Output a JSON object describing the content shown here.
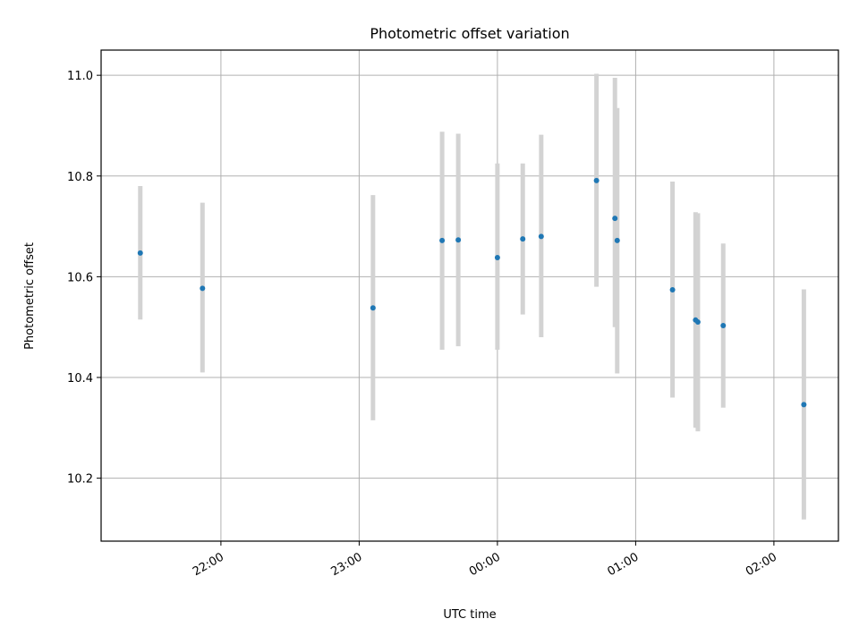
{
  "chart_data": {
    "type": "scatter",
    "title": "Photometric offset variation",
    "xlabel": "UTC time",
    "ylabel": "Photometric offset",
    "x_axis": {
      "type": "time",
      "range": [
        "21:08",
        "02:28"
      ],
      "ticks": [
        "22:00",
        "23:00",
        "00:00",
        "01:00",
        "02:00"
      ]
    },
    "y_axis": {
      "range": [
        10.075,
        11.05
      ],
      "ticks": [
        "10.2",
        "10.4",
        "10.6",
        "10.8",
        "11.0"
      ]
    },
    "grid": true,
    "marker_color": "#1f77b4",
    "errorbar_color": "#d3d3d3",
    "points": [
      {
        "x": "21:25",
        "y": 10.647,
        "low": 10.515,
        "high": 10.78
      },
      {
        "x": "21:52",
        "y": 10.577,
        "low": 10.41,
        "high": 10.747
      },
      {
        "x": "23:06",
        "y": 10.538,
        "low": 10.315,
        "high": 10.762
      },
      {
        "x": "23:36",
        "y": 10.672,
        "low": 10.455,
        "high": 10.888
      },
      {
        "x": "23:43",
        "y": 10.673,
        "low": 10.462,
        "high": 10.884
      },
      {
        "x": "00:00",
        "y": 10.638,
        "low": 10.455,
        "high": 10.825
      },
      {
        "x": "00:11",
        "y": 10.675,
        "low": 10.525,
        "high": 10.825
      },
      {
        "x": "00:19",
        "y": 10.68,
        "low": 10.48,
        "high": 10.882
      },
      {
        "x": "00:43",
        "y": 10.791,
        "low": 10.58,
        "high": 11.003
      },
      {
        "x": "00:51",
        "y": 10.716,
        "low": 10.5,
        "high": 10.995
      },
      {
        "x": "00:52",
        "y": 10.672,
        "low": 10.408,
        "high": 10.935
      },
      {
        "x": "01:16",
        "y": 10.574,
        "low": 10.36,
        "high": 10.789
      },
      {
        "x": "01:26",
        "y": 10.514,
        "low": 10.3,
        "high": 10.728
      },
      {
        "x": "01:27",
        "y": 10.51,
        "low": 10.293,
        "high": 10.726
      },
      {
        "x": "01:38",
        "y": 10.503,
        "low": 10.34,
        "high": 10.666
      },
      {
        "x": "02:13",
        "y": 10.346,
        "low": 10.118,
        "high": 10.575
      }
    ]
  }
}
